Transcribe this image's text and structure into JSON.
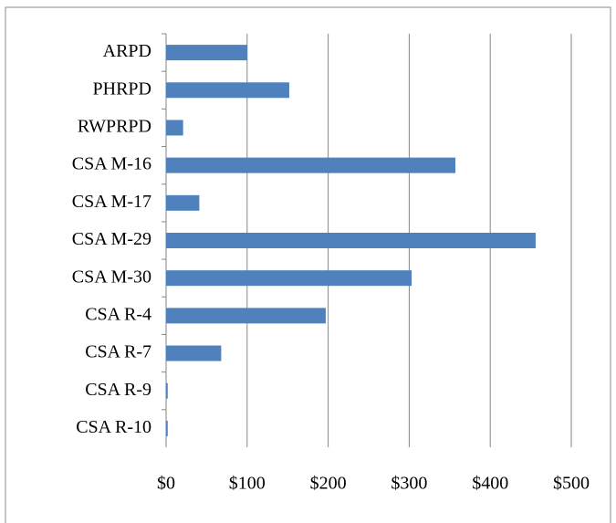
{
  "chart_data": {
    "type": "bar",
    "orientation": "horizontal",
    "categories": [
      "ARPD",
      "PHRPD",
      "RWPRPD",
      "CSA M-16",
      "CSA M-17",
      "CSA M-29",
      "CSA M-30",
      "CSA R-4",
      "CSA R-7",
      "CSA R-9",
      "CSA R-10"
    ],
    "values": [
      100,
      152,
      21,
      357,
      41,
      456,
      303,
      197,
      68,
      2,
      2
    ],
    "color": "#4f81bd",
    "xlim": [
      0,
      500
    ],
    "xticks": [
      {
        "value": 0,
        "label": "$0"
      },
      {
        "value": 100,
        "label": "$100"
      },
      {
        "value": 200,
        "label": "$200"
      },
      {
        "value": 300,
        "label": "$300"
      },
      {
        "value": 400,
        "label": "$400"
      },
      {
        "value": 500,
        "label": "$500"
      }
    ],
    "grid": true
  }
}
